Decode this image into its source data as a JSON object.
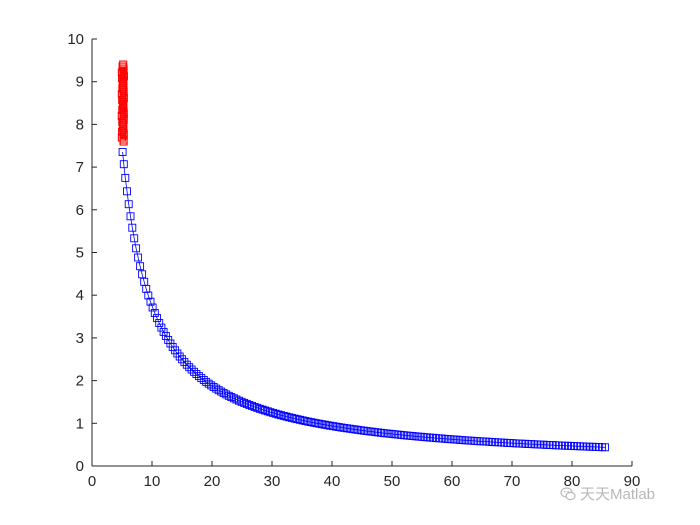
{
  "chart_data": {
    "type": "scatter",
    "title": "",
    "xlabel": "",
    "ylabel": "",
    "xlim": [
      0,
      90
    ],
    "ylim": [
      0,
      10
    ],
    "xticks": [
      0,
      10,
      20,
      30,
      40,
      50,
      60,
      70,
      80,
      90
    ],
    "yticks": [
      0,
      1,
      2,
      3,
      4,
      5,
      6,
      7,
      8,
      9,
      10
    ],
    "grid": false,
    "legend": "none",
    "marker": "square",
    "series": [
      {
        "color": "#0000ff",
        "curve": "y = 37.5 / x",
        "x_range": [
          5.1,
          85.5
        ],
        "point_count": 180,
        "line": true
      },
      {
        "color": "#ff0000",
        "x_range": [
          4.95,
          5.4
        ],
        "y_range": [
          7.6,
          9.4
        ],
        "point_count": 40,
        "line": false
      }
    ]
  },
  "watermark": {
    "text": "天天Matlab",
    "icon": "wechat-icon"
  }
}
